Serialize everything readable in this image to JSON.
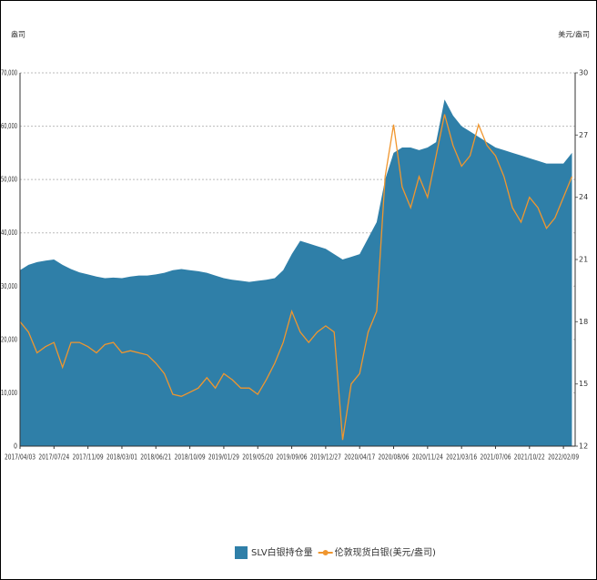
{
  "chart_data": {
    "type": "area",
    "y_label": "盎司",
    "y2_label": "美元/盎司",
    "categories": [
      "2017/04/03",
      null,
      null,
      null,
      "2017/07/24",
      null,
      null,
      null,
      "2017/11/09",
      null,
      null,
      null,
      "2018/03/01",
      null,
      null,
      null,
      "2018/06/21",
      null,
      null,
      null,
      "2018/10/09",
      null,
      null,
      null,
      "2019/01/29",
      null,
      null,
      null,
      "2019/05/20",
      null,
      null,
      null,
      "2019/09/06",
      null,
      null,
      null,
      "2019/12/27",
      null,
      null,
      null,
      "2020/04/17",
      null,
      null,
      null,
      "2020/08/06",
      null,
      null,
      null,
      "2020/11/24",
      null,
      null,
      null,
      "2021/03/16",
      null,
      null,
      null,
      "2021/07/06",
      null,
      null,
      null,
      "2021/10/22",
      null,
      null,
      null,
      "2022/02/09",
      null
    ],
    "series": [
      {
        "name": "SLV白银持仓量",
        "color": "#2f7fa8",
        "values": [
          33000,
          34000,
          34500,
          34800,
          35000,
          34000,
          33200,
          32600,
          32200,
          31800,
          31500,
          31600,
          31500,
          31800,
          32000,
          32000,
          32200,
          32500,
          33000,
          33200,
          33000,
          32800,
          32500,
          32000,
          31500,
          31200,
          31000,
          30800,
          31000,
          31200,
          31500,
          33000,
          36000,
          38500,
          38000,
          37500,
          37000,
          36000,
          35000,
          35500,
          36000,
          39000,
          42000,
          50000,
          55000,
          56000,
          56000,
          55500,
          56000,
          57000,
          65000,
          62000,
          60000,
          59000,
          58000,
          57000,
          56000,
          55500,
          55000,
          54500,
          54000,
          53500,
          53000,
          53000,
          53000,
          55000
        ]
      },
      {
        "name": "伦敦现货白银(美元/盎司)",
        "color": "#f0962e",
        "axis": "y2",
        "values": [
          18.0,
          17.5,
          16.5,
          16.8,
          17.0,
          15.8,
          17.0,
          17.0,
          16.8,
          16.5,
          16.9,
          17.0,
          16.5,
          16.6,
          16.5,
          16.4,
          16.0,
          15.5,
          14.5,
          14.4,
          14.6,
          14.8,
          15.3,
          14.8,
          15.5,
          15.2,
          14.8,
          14.8,
          14.5,
          15.2,
          16.0,
          17.0,
          18.5,
          17.5,
          17.0,
          17.5,
          17.8,
          17.5,
          12.3,
          15.0,
          15.5,
          17.5,
          18.5,
          25.0,
          27.5,
          24.5,
          23.5,
          25.0,
          24.0,
          26.0,
          28.0,
          26.5,
          25.5,
          26.0,
          27.5,
          26.5,
          26.0,
          25.0,
          23.5,
          22.8,
          24.0,
          23.5,
          22.5,
          23.0,
          24.0,
          25.0
        ]
      }
    ],
    "ylim": [
      0,
      70000
    ],
    "yticks": [
      0,
      {
        "value": 10000,
        "label": "10,000"
      },
      {
        "value": 20000,
        "label": "20,000"
      },
      {
        "value": 30000,
        "label": "30,000"
      },
      {
        "value": 40000,
        "label": "40,000"
      },
      {
        "value": 50000,
        "label": "50,000"
      },
      {
        "value": 60000,
        "label": "60,000"
      },
      {
        "value": 70000,
        "label": "70,000"
      }
    ],
    "y2lim": [
      12,
      30
    ],
    "y2ticks": [
      12,
      15,
      18,
      21,
      24,
      27,
      30
    ],
    "grid": true
  }
}
